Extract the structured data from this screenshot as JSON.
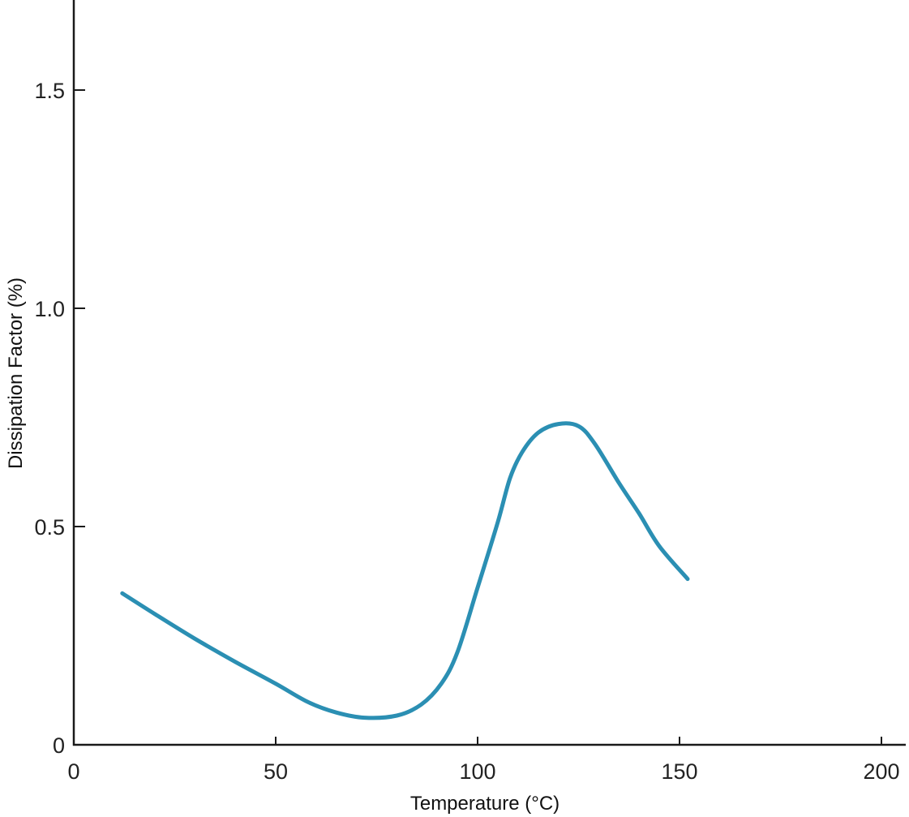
{
  "chart_data": {
    "type": "line",
    "title": "",
    "xlabel": "Temperature (°C)",
    "ylabel": "Dissipation Factor (%)",
    "xlim": [
      0,
      205
    ],
    "ylim": [
      0,
      1.7
    ],
    "x_ticks": [
      0,
      50,
      100,
      150,
      200
    ],
    "x_tick_labels": [
      "0",
      "50",
      "100",
      "150",
      "200"
    ],
    "y_ticks": [
      0,
      0.5,
      1.0,
      1.5
    ],
    "y_tick_labels": [
      "0",
      "0.5",
      "1.0",
      "1.5"
    ],
    "grid": false,
    "legend": "none",
    "colors": {
      "series": "#2b8fb3",
      "axis": "#1a1a1a"
    },
    "series": [
      {
        "x": [
          12,
          20,
          30,
          40,
          50,
          58,
          65,
          72,
          80,
          86,
          91,
          95,
          100,
          105,
          108,
          111,
          115,
          120,
          125,
          129,
          135,
          140,
          145,
          152
        ],
        "values": [
          0.347,
          0.3,
          0.243,
          0.19,
          0.14,
          0.098,
          0.074,
          0.062,
          0.067,
          0.092,
          0.14,
          0.212,
          0.36,
          0.51,
          0.61,
          0.67,
          0.715,
          0.735,
          0.73,
          0.69,
          0.6,
          0.53,
          0.455,
          0.38
        ]
      }
    ]
  }
}
